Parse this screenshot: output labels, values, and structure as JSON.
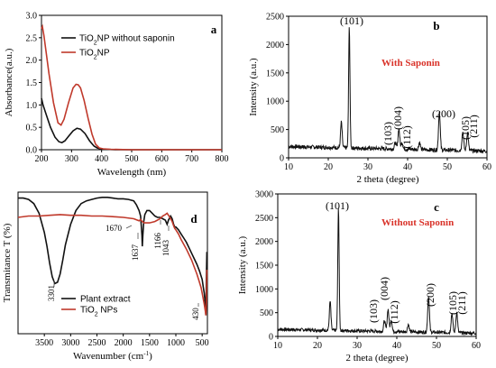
{
  "chart_data": [
    {
      "id": "a",
      "panel_label": "a",
      "type": "line",
      "xlabel": "Wavelength (nm)",
      "ylabel": "Absorbance(a.u.)",
      "xlim": [
        200,
        800
      ],
      "ylim": [
        0.0,
        3.0
      ],
      "xticks": [
        200,
        300,
        400,
        500,
        600,
        700,
        800
      ],
      "yticks": [
        0.0,
        0.5,
        1.0,
        1.5,
        2.0,
        2.5,
        3.0
      ],
      "legend_position": "top-right",
      "series": [
        {
          "name": "TiO2NP without saponin",
          "label_main": "TiO",
          "label_sub": "2",
          "label_rest": "NP without saponin",
          "color": "#111111",
          "x": [
            200,
            205,
            215,
            230,
            245,
            258,
            268,
            278,
            290,
            305,
            318,
            330,
            345,
            360,
            375,
            385,
            395,
            410,
            450,
            500,
            600,
            700,
            800
          ],
          "y": [
            1.15,
            1.0,
            0.8,
            0.5,
            0.28,
            0.18,
            0.16,
            0.2,
            0.3,
            0.42,
            0.48,
            0.46,
            0.36,
            0.2,
            0.08,
            0.04,
            0.02,
            0.01,
            0.0,
            0.0,
            0.0,
            0.0,
            0.0
          ]
        },
        {
          "name": "TiO2NP",
          "label_main": "TiO",
          "label_sub": "2",
          "label_rest": "NP",
          "color": "#c0392b",
          "x": [
            200,
            203,
            208,
            215,
            225,
            240,
            255,
            265,
            275,
            290,
            305,
            315,
            322,
            330,
            342,
            355,
            368,
            380,
            392,
            405,
            430,
            500,
            600,
            700,
            800
          ],
          "y": [
            2.7,
            2.75,
            2.55,
            2.2,
            1.7,
            1.05,
            0.6,
            0.55,
            0.68,
            1.05,
            1.38,
            1.46,
            1.45,
            1.38,
            1.1,
            0.7,
            0.35,
            0.12,
            0.04,
            0.02,
            0.01,
            0.0,
            0.0,
            0.0,
            0.0
          ]
        }
      ]
    },
    {
      "id": "b",
      "panel_label": "b",
      "type": "line",
      "condition": "With Saponin",
      "xlabel": "2 theta (degree)",
      "ylabel": "Intensity (a.u.)",
      "xlim": [
        10,
        60
      ],
      "ylim": [
        0,
        2500
      ],
      "xticks": [
        10,
        20,
        30,
        40,
        50,
        60
      ],
      "yticks": [
        0,
        500,
        1000,
        1500,
        2000,
        2500
      ],
      "baseline": 200,
      "peaks": [
        {
          "x": 23.3,
          "y": 650,
          "w": 0.28
        },
        {
          "x": 25.3,
          "y": 2330,
          "w": 0.24
        },
        {
          "x": 36.9,
          "y": 310,
          "w": 0.3
        },
        {
          "x": 37.8,
          "y": 560,
          "w": 0.3
        },
        {
          "x": 38.6,
          "y": 320,
          "w": 0.3
        },
        {
          "x": 43.0,
          "y": 330,
          "w": 0.3
        },
        {
          "x": 48.0,
          "y": 870,
          "w": 0.3
        },
        {
          "x": 53.9,
          "y": 530,
          "w": 0.3
        },
        {
          "x": 55.1,
          "y": 520,
          "w": 0.3
        }
      ],
      "labels": [
        "(101)",
        "(103)",
        "(004)",
        "(112)",
        "(200)",
        "(105)",
        "(211)"
      ]
    },
    {
      "id": "c",
      "panel_label": "c",
      "type": "line",
      "condition": "Without Saponin",
      "xlabel": "2 theta (degree)",
      "ylabel": "Intensity (a.u.)",
      "xlim": [
        10,
        60
      ],
      "ylim": [
        0,
        3000
      ],
      "xticks": [
        10,
        20,
        30,
        40,
        50,
        60
      ],
      "yticks": [
        0,
        500,
        1000,
        1500,
        2000,
        2500,
        3000
      ],
      "baseline": 150,
      "peaks": [
        {
          "x": 23.2,
          "y": 760,
          "w": 0.28
        },
        {
          "x": 25.3,
          "y": 2720,
          "w": 0.24
        },
        {
          "x": 36.9,
          "y": 380,
          "w": 0.3
        },
        {
          "x": 37.8,
          "y": 620,
          "w": 0.3
        },
        {
          "x": 38.6,
          "y": 400,
          "w": 0.3
        },
        {
          "x": 42.9,
          "y": 310,
          "w": 0.3
        },
        {
          "x": 48.0,
          "y": 900,
          "w": 0.3
        },
        {
          "x": 53.9,
          "y": 560,
          "w": 0.3
        },
        {
          "x": 55.1,
          "y": 580,
          "w": 0.3
        }
      ],
      "labels": [
        "(101)",
        "(103)",
        "(004)",
        "(112)",
        "(200)",
        "(105)",
        "(211)"
      ]
    },
    {
      "id": "d",
      "panel_label": "d",
      "type": "line",
      "xlabel_main": "Wavenumber (cm",
      "xlabel_sup": "-1",
      "xlabel_close": ")",
      "ylabel": "Transmitance T (%)",
      "xlim": [
        4000,
        400
      ],
      "xticks": [
        3500,
        3000,
        2500,
        2000,
        1500,
        1000,
        500
      ],
      "peak_labels": [
        "3301",
        "1670",
        "1637",
        "1166",
        "1043",
        "430"
      ],
      "legend_position": "bottom-left",
      "series": [
        {
          "name": "Plant extract",
          "color": "#111111",
          "x": [
            4000,
            3900,
            3800,
            3700,
            3600,
            3500,
            3450,
            3400,
            3350,
            3301,
            3250,
            3200,
            3150,
            3100,
            3000,
            2900,
            2800,
            2700,
            2600,
            2500,
            2400,
            2300,
            2200,
            2100,
            2000,
            1900,
            1800,
            1750,
            1700,
            1670,
            1645,
            1637,
            1628,
            1610,
            1590,
            1550,
            1500,
            1450,
            1400,
            1350,
            1300,
            1250,
            1200,
            1166,
            1140,
            1100,
            1070,
            1043,
            1020,
            1000,
            950,
            900,
            850,
            800,
            750,
            700,
            650,
            600,
            550,
            500,
            480,
            460,
            445,
            430,
            420,
            410
          ],
          "y": [
            97,
            97,
            96,
            93,
            86,
            72,
            62,
            50,
            40,
            35,
            36,
            42,
            52,
            63,
            78,
            88,
            93,
            95,
            96,
            97,
            97.5,
            97.5,
            97,
            96.5,
            96.5,
            96,
            95,
            92,
            88,
            84,
            70,
            62,
            70,
            80,
            85,
            88,
            88,
            86,
            84,
            83,
            83,
            82,
            81,
            78,
            81,
            84,
            82,
            78,
            76,
            76,
            74,
            71,
            68,
            65,
            61,
            57,
            53,
            49,
            44,
            38,
            33,
            28,
            22,
            12,
            38,
            58
          ]
        },
        {
          "name": "TiO2 NPs",
          "label_main": "TiO",
          "label_sub": "2",
          "label_rest": " NPs",
          "color": "#c0392b",
          "x": [
            4000,
            3800,
            3600,
            3400,
            3200,
            3000,
            2800,
            2600,
            2400,
            2200,
            2000,
            1800,
            1700,
            1670,
            1640,
            1600,
            1500,
            1400,
            1300,
            1250,
            1200,
            1166,
            1130,
            1100,
            1070,
            1043,
            1020,
            1000,
            950,
            900,
            800,
            700,
            650,
            600,
            560,
            520,
            490,
            460,
            440,
            430,
            420,
            410
          ],
          "y": [
            83,
            84,
            84,
            84.5,
            85,
            84.5,
            84.5,
            84,
            84,
            83.5,
            83,
            82,
            80.5,
            81.5,
            80,
            79,
            79,
            80,
            82,
            84,
            85,
            86,
            84,
            82,
            80,
            77,
            75,
            74,
            71,
            67,
            60,
            52,
            47,
            42,
            37,
            32,
            26,
            20,
            15,
            12,
            20,
            45
          ]
        }
      ]
    }
  ]
}
